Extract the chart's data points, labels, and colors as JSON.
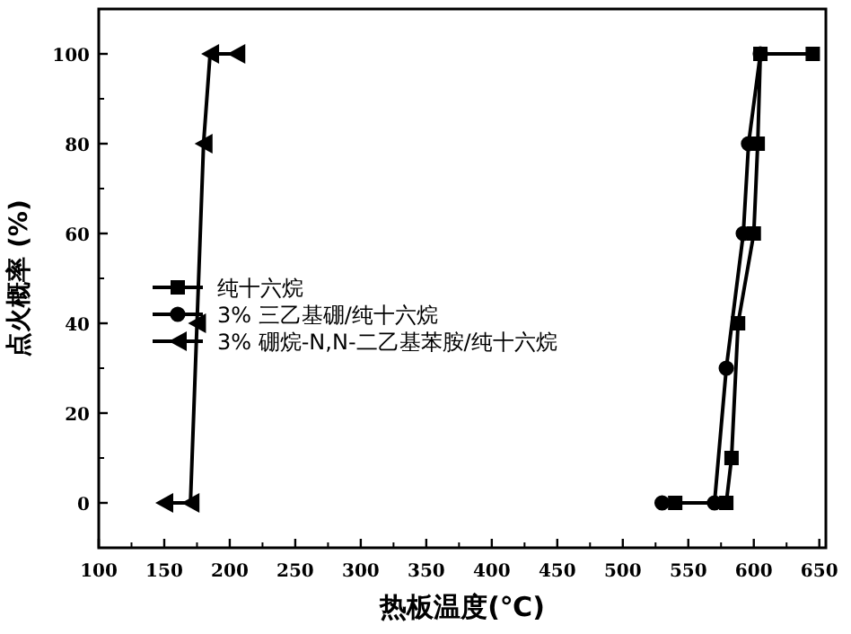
{
  "chart_data": {
    "type": "line",
    "xlabel": "热板温度(℃)",
    "ylabel": "点火概率 (%)",
    "xlim": [
      100,
      655
    ],
    "ylim": [
      -10,
      110
    ],
    "xticks": [
      100,
      150,
      200,
      250,
      300,
      350,
      400,
      450,
      500,
      550,
      600,
      650
    ],
    "yticks": [
      0,
      20,
      40,
      60,
      80,
      100
    ],
    "legend": "left",
    "grid": false,
    "series": [
      {
        "name": "纯十六烷",
        "color": "#000000",
        "marker": "square",
        "x": [
          540,
          579,
          583,
          588,
          600,
          603,
          605,
          645
        ],
        "values": [
          0,
          0,
          10,
          40,
          60,
          80,
          100,
          100
        ]
      },
      {
        "name": "3% 三乙基硼/纯十六烷",
        "color": "#000000",
        "marker": "circle",
        "x": [
          530,
          570,
          579,
          592,
          596,
          605
        ],
        "values": [
          0,
          0,
          30,
          60,
          80,
          100
        ]
      },
      {
        "name": "3% 硼烷-N,N-二乙基苯胺/纯十六烷",
        "color": "#000000",
        "marker": "triangle",
        "x": [
          150,
          170,
          175,
          180,
          185,
          205
        ],
        "values": [
          0,
          0,
          40,
          80,
          100,
          100
        ]
      }
    ]
  }
}
